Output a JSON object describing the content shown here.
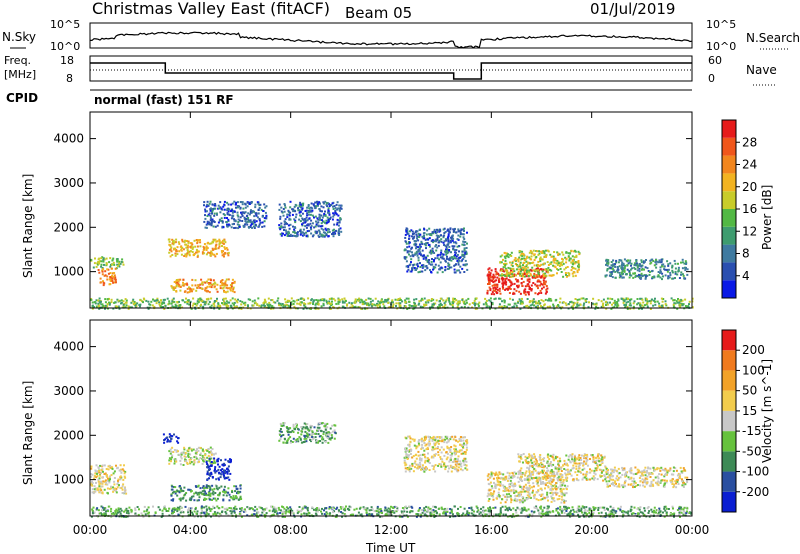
{
  "header": {
    "station": "Christmas Valley East (fitACF)",
    "beam": "Beam 05",
    "date": "01/Jul/2019"
  },
  "panels": {
    "nsky_label": "N.Sky",
    "nsearch_label": "N.Search",
    "nsky_ticks": [
      "10^5",
      "10^0"
    ],
    "nsearch_ticks": [
      "10^5",
      "10^0"
    ],
    "freq_label_1": "Freq.",
    "freq_label_2": "[MHz]",
    "freq_ticks": [
      "18",
      "8"
    ],
    "nave_label": "Nave",
    "nave_ticks": [
      "60",
      "0"
    ],
    "cpid_label": "CPID",
    "cpid_value": "normal (fast) 151 RF"
  },
  "chart_data": [
    {
      "type": "heatmap",
      "name": "power",
      "ylabel": "Slant Range [km]",
      "yticks": [
        "4000",
        "3000",
        "2000",
        "1000"
      ],
      "ytick_values": [
        4000,
        3000,
        2000,
        1000
      ],
      "ylim": [
        180,
        4600
      ],
      "xticks": [
        "00:00",
        "04:00",
        "08:00",
        "12:00",
        "16:00",
        "20:00",
        "00:00"
      ],
      "xlim_hours": [
        0,
        24
      ],
      "colorbar": {
        "label": "Power [dB]",
        "ticks": [
          "4",
          "8",
          "12",
          "16",
          "20",
          "24",
          "28"
        ],
        "colors": [
          "#0a19e6",
          "#2a4fb0",
          "#3f7aa0",
          "#3e9c6f",
          "#52b844",
          "#c8cc2a",
          "#f2b321",
          "#f2861e",
          "#f0561b",
          "#e61b1b"
        ]
      },
      "blobs": [
        {
          "t0": 0.0,
          "t1": 1.3,
          "r0": 1100,
          "r1": 1350,
          "level": 0.45
        },
        {
          "t0": 0.3,
          "t1": 1.0,
          "r0": 700,
          "r1": 1100,
          "level": 0.75
        },
        {
          "t0": 3.1,
          "t1": 5.5,
          "r0": 1350,
          "r1": 1750,
          "level": 0.65
        },
        {
          "t0": 3.2,
          "t1": 5.8,
          "r0": 550,
          "r1": 850,
          "level": 0.7
        },
        {
          "t0": 4.5,
          "t1": 7.0,
          "r0": 2000,
          "r1": 2600,
          "level": 0.2
        },
        {
          "t0": 7.5,
          "t1": 10.0,
          "r0": 1800,
          "r1": 2600,
          "level": 0.2
        },
        {
          "t0": 12.5,
          "t1": 15.0,
          "r0": 1000,
          "r1": 2000,
          "level": 0.2
        },
        {
          "t0": 15.8,
          "t1": 18.2,
          "r0": 500,
          "r1": 1100,
          "level": 0.95
        },
        {
          "t0": 16.3,
          "t1": 19.5,
          "r0": 900,
          "r1": 1500,
          "level": 0.55
        },
        {
          "t0": 20.5,
          "t1": 23.8,
          "r0": 850,
          "r1": 1300,
          "level": 0.3
        },
        {
          "t0": 0.0,
          "t1": 24.0,
          "r0": 180,
          "r1": 420,
          "level": 0.45
        }
      ]
    },
    {
      "type": "heatmap",
      "name": "velocity",
      "ylabel": "Slant Range [km]",
      "yticks": [
        "4000",
        "3000",
        "2000",
        "1000"
      ],
      "ytick_values": [
        4000,
        3000,
        2000,
        1000
      ],
      "ylim": [
        180,
        4600
      ],
      "xticks": [
        "00:00",
        "04:00",
        "08:00",
        "12:00",
        "16:00",
        "20:00",
        "00:00"
      ],
      "xlim_hours": [
        0,
        24
      ],
      "xlabel": "Time UT",
      "colorbar": {
        "label": "Velocity [m s^-1]",
        "ticks": [
          "200",
          "100",
          "50",
          "15",
          "-15",
          "-50",
          "-100",
          "-200"
        ],
        "colors": [
          "#0a1ed2",
          "#2a4fa0",
          "#3d8a56",
          "#66c23d",
          "#c8c8c8",
          "#f2cc4d",
          "#f2a228",
          "#f07a1e",
          "#e61b1b"
        ]
      },
      "blobs": [
        {
          "t0": 0.0,
          "t1": 1.4,
          "r0": 700,
          "r1": 1350,
          "level": 0.55
        },
        {
          "t0": 3.1,
          "t1": 5.0,
          "r0": 1350,
          "r1": 1750,
          "level": 0.5
        },
        {
          "t0": 4.6,
          "t1": 5.6,
          "r0": 1000,
          "r1": 1500,
          "level": 0.05
        },
        {
          "t0": 2.8,
          "t1": 3.5,
          "r0": 1850,
          "r1": 2050,
          "level": 0.05
        },
        {
          "t0": 3.2,
          "t1": 6.0,
          "r0": 550,
          "r1": 900,
          "level": 0.3
        },
        {
          "t0": 7.5,
          "t1": 9.8,
          "r0": 1850,
          "r1": 2300,
          "level": 0.35
        },
        {
          "t0": 12.5,
          "t1": 15.0,
          "r0": 1200,
          "r1": 2000,
          "level": 0.55
        },
        {
          "t0": 15.8,
          "t1": 19.0,
          "r0": 500,
          "r1": 1200,
          "level": 0.55
        },
        {
          "t0": 17.0,
          "t1": 20.5,
          "r0": 1000,
          "r1": 1600,
          "level": 0.55
        },
        {
          "t0": 20.5,
          "t1": 23.8,
          "r0": 850,
          "r1": 1300,
          "level": 0.55
        },
        {
          "t0": 0.0,
          "t1": 24.0,
          "r0": 180,
          "r1": 420,
          "level": 0.35
        }
      ]
    }
  ]
}
